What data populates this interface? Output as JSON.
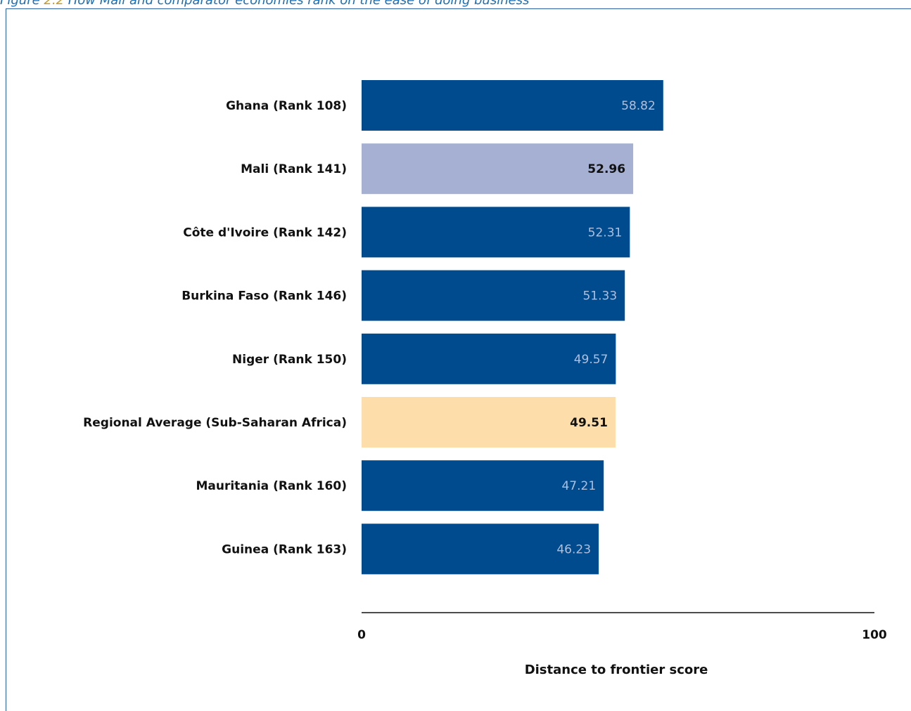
{
  "caption": {
    "prefix": "Figure ",
    "number": "2.2",
    "text": " How Mali and comparator economies rank on the ease of doing business"
  },
  "colors": {
    "default": "#004b8d",
    "highlight": "#a5b0d2",
    "regional": "#fddeaa",
    "label_light": "#b0bfdc",
    "label_dark": "#111111"
  },
  "chart_data": {
    "type": "bar",
    "orientation": "horizontal",
    "categories": [
      "Ghana (Rank 108)",
      "Mali (Rank 141)",
      "Côte d'Ivoire (Rank 142)",
      "Burkina Faso (Rank 146)",
      "Niger (Rank 150)",
      "Regional Average (Sub-Saharan Africa)",
      "Mauritania (Rank 160)",
      "Guinea (Rank 163)"
    ],
    "values": [
      58.82,
      52.96,
      52.31,
      51.33,
      49.57,
      49.51,
      47.21,
      46.23
    ],
    "value_labels": [
      "58.82",
      "52.96",
      "52.31",
      "51.33",
      "49.57",
      "49.51",
      "47.21",
      "46.23"
    ],
    "bar_styles": [
      "default",
      "highlight",
      "default",
      "default",
      "default",
      "regional",
      "default",
      "default"
    ],
    "xlabel": "Distance to frontier score",
    "ylabel": "",
    "xlim": [
      0,
      100
    ],
    "ticks": [
      "0",
      "100"
    ],
    "grid": false,
    "legend": "none"
  }
}
